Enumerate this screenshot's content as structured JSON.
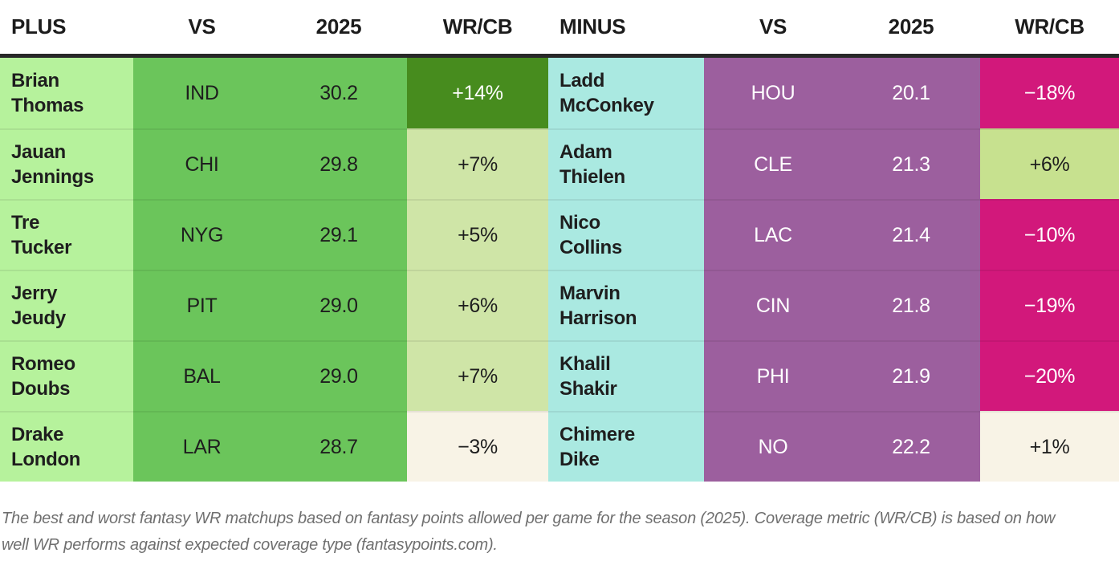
{
  "chart_data": {
    "type": "table",
    "title": "Best and worst fantasy WR matchups (2025)",
    "columns_left": [
      "PLUS",
      "VS",
      "2025",
      "WR/CB"
    ],
    "columns_right": [
      "MINUS",
      "VS",
      "2025",
      "WR/CB"
    ],
    "colors": {
      "plus_name_bg": "#b6f29c",
      "plus_mid_bg": "#6bc55b",
      "minus_name_bg": "#aae9e1",
      "minus_mid_bg": "#9c5f9e",
      "plus_strong_bg": "#478c1e",
      "plus_mild_bg": "#cfe5a7",
      "minus_mild_bg": "#c7e18f",
      "neutral_bg": "#f8f3e6",
      "minus_strong_bg": "#d2187b",
      "header_rule": "#282828",
      "dark_text": "#1e1e1e",
      "light_text": "#ffffff",
      "caption_text": "#6f6f6f"
    },
    "rows": [
      {
        "plus": {
          "player": "Brian Thomas",
          "team": "IND",
          "pts": "30.2",
          "pct": "+14%",
          "pct_bg": "#478c1e",
          "pct_fg": "#ffffff"
        },
        "minus": {
          "player": "Ladd McConkey",
          "team": "HOU",
          "pts": "20.1",
          "pct": "−18%",
          "pct_bg": "#d2187b",
          "pct_fg": "#ffffff"
        }
      },
      {
        "plus": {
          "player": "Jauan Jennings",
          "team": "CHI",
          "pts": "29.8",
          "pct": "+7%",
          "pct_bg": "#cfe5a7",
          "pct_fg": "#1e1e1e"
        },
        "minus": {
          "player": "Adam Thielen",
          "team": "CLE",
          "pts": "21.3",
          "pct": "+6%",
          "pct_bg": "#c7e18f",
          "pct_fg": "#1e1e1e"
        }
      },
      {
        "plus": {
          "player": "Tre Tucker",
          "team": "NYG",
          "pts": "29.1",
          "pct": "+5%",
          "pct_bg": "#cfe5a7",
          "pct_fg": "#1e1e1e"
        },
        "minus": {
          "player": "Nico Collins",
          "team": "LAC",
          "pts": "21.4",
          "pct": "−10%",
          "pct_bg": "#d2187b",
          "pct_fg": "#ffffff"
        }
      },
      {
        "plus": {
          "player": "Jerry Jeudy",
          "team": "PIT",
          "pts": "29.0",
          "pct": "+6%",
          "pct_bg": "#cfe5a7",
          "pct_fg": "#1e1e1e"
        },
        "minus": {
          "player": "Marvin Harrison",
          "team": "CIN",
          "pts": "21.8",
          "pct": "−19%",
          "pct_bg": "#d2187b",
          "pct_fg": "#ffffff"
        }
      },
      {
        "plus": {
          "player": "Romeo Doubs",
          "team": "BAL",
          "pts": "29.0",
          "pct": "+7%",
          "pct_bg": "#cfe5a7",
          "pct_fg": "#1e1e1e"
        },
        "minus": {
          "player": "Khalil Shakir",
          "team": "PHI",
          "pts": "21.9",
          "pct": "−20%",
          "pct_bg": "#d2187b",
          "pct_fg": "#ffffff"
        }
      },
      {
        "plus": {
          "player": "Drake London",
          "team": "LAR",
          "pts": "28.7",
          "pct": "−3%",
          "pct_bg": "#f8f3e6",
          "pct_fg": "#1e1e1e"
        },
        "minus": {
          "player": "Chimere Dike",
          "team": "NO",
          "pts": "22.2",
          "pct": "+1%",
          "pct_bg": "#f8f3e6",
          "pct_fg": "#1e1e1e"
        }
      }
    ],
    "caption": "The best and worst fantasy WR matchups based on fantasy points allowed per game for the season (2025). Coverage metric (WR/CB) is based on how well WR performs against expected coverage type (fantasypoints.com)."
  }
}
